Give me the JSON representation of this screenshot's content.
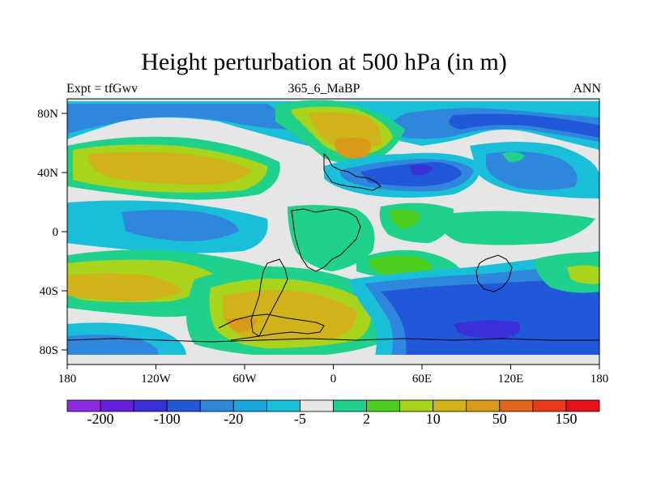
{
  "title": "Height perturbation at 500 hPa (in m)",
  "subtitle_left": "Expt = tfGwv",
  "subtitle_center": "365_6_MaBP",
  "subtitle_right": "ANN",
  "lat_ticks": [
    "80N",
    "40N",
    "0",
    "40S",
    "80S"
  ],
  "lon_ticks": [
    "180",
    "120W",
    "60W",
    "0",
    "60E",
    "120E",
    "180"
  ],
  "colorbar": {
    "colors": [
      "#8c2be2",
      "#6a1ee0",
      "#3a30d8",
      "#2158d9",
      "#2e86dd",
      "#1aa6dc",
      "#19bfd9",
      "#e6e6e6",
      "#1fd18a",
      "#4ccf1f",
      "#a8d51c",
      "#d0b21b",
      "#d99a1a",
      "#e0661a",
      "#e83a1a",
      "#e8111b"
    ],
    "labels": [
      "-200",
      "-100",
      "-20",
      "-5",
      "2",
      "10",
      "50",
      "150"
    ]
  },
  "palette": {
    "grey": "#e6e6e6",
    "cyan": "#19bfd9",
    "lightblue": "#2e86dd",
    "blue": "#2158d9",
    "darkblue": "#3a30d8",
    "green": "#1fd18a",
    "lime": "#4ccf1f",
    "yellow": "#a8d51c",
    "gold": "#d0b21b",
    "orange": "#d99a1a",
    "darkorange": "#e0661a"
  }
}
